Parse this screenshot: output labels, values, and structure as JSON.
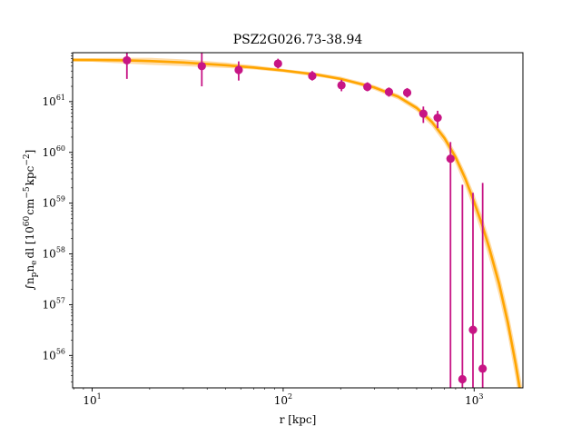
{
  "chart_data": {
    "type": "scatter",
    "title": "PSZ2G026.73-38.94",
    "xlabel": "r [kpc]",
    "ylabel": {
      "integral": "∫",
      "base": "n",
      "sub1": "p",
      "mid": "n",
      "sub2": "e",
      "tail": "dl [10",
      "sup1": "60",
      "unit": "cm",
      "sup2": "−5",
      "unit2": "kpc",
      "sup3": "−2",
      "close": "]"
    },
    "x_scale": "log",
    "y_scale": "log",
    "xlim": [
      7.9,
      1800
    ],
    "ylim": [
      2.3e+55,
      9.2e+61
    ],
    "x_ticks": [
      {
        "value": 10,
        "base": "10",
        "exp": "1"
      },
      {
        "value": 100,
        "base": "10",
        "exp": "2"
      },
      {
        "value": 1000,
        "base": "10",
        "exp": "3"
      }
    ],
    "y_ticks": [
      {
        "value": 1e+56,
        "base": "10",
        "exp": "56"
      },
      {
        "value": 1e+57,
        "base": "10",
        "exp": "57"
      },
      {
        "value": 1e+58,
        "base": "10",
        "exp": "58"
      },
      {
        "value": 1e+59,
        "base": "10",
        "exp": "59"
      },
      {
        "value": 1e+60,
        "base": "10",
        "exp": "60"
      },
      {
        "value": 1e+61,
        "base": "10",
        "exp": "61"
      }
    ],
    "grid": false,
    "legend": "none",
    "colors": {
      "points": "#c71585",
      "model": "#ffa500",
      "band": "#ffd79a"
    },
    "data_points": [
      {
        "r": 15.2,
        "y": 6.5e+61,
        "ylo": 2.8e+61,
        "yhi": 9.2e+61
      },
      {
        "r": 37.5,
        "y": 5e+61,
        "ylo": 2e+61,
        "yhi": 9e+61
      },
      {
        "r": 58.5,
        "y": 4.2e+61,
        "ylo": 2.6e+61,
        "yhi": 6.2e+61
      },
      {
        "r": 94.0,
        "y": 5.6e+61,
        "ylo": 4.5e+61,
        "yhi": 7e+61
      },
      {
        "r": 142.0,
        "y": 3.2e+61,
        "ylo": 2.6e+61,
        "yhi": 4e+61
      },
      {
        "r": 202.0,
        "y": 2.1e+61,
        "ylo": 1.6e+61,
        "yhi": 2.7e+61
      },
      {
        "r": 276.0,
        "y": 1.95e+61,
        "ylo": 1.6e+61,
        "yhi": 2.4e+61
      },
      {
        "r": 358.0,
        "y": 1.55e+61,
        "ylo": 1.25e+61,
        "yhi": 1.9e+61
      },
      {
        "r": 446.0,
        "y": 1.5e+61,
        "ylo": 1.2e+61,
        "yhi": 1.85e+61
      },
      {
        "r": 542.0,
        "y": 5.8e+60,
        "ylo": 3.8e+60,
        "yhi": 8e+60
      },
      {
        "r": 644.0,
        "y": 4.8e+60,
        "ylo": 3e+60,
        "yhi": 6.6e+60
      },
      {
        "r": 752.0,
        "y": 7.5e+59,
        "ylo": 2.3e+55,
        "yhi": 1.6e+60
      },
      {
        "r": 868.0,
        "y": 3.4e+55,
        "ylo": 2.3e+55,
        "yhi": 2.3e+59
      },
      {
        "r": 986.0,
        "y": 3.2e+56,
        "ylo": 2.3e+55,
        "yhi": 1.6e+59
      },
      {
        "r": 1108.0,
        "y": 5.5e+55,
        "ylo": 2.3e+55,
        "yhi": 2.5e+59
      }
    ],
    "model_curve": [
      {
        "r": 7.9,
        "y": 6.6e+61,
        "lo": 6.2e+61,
        "hi": 7.2e+61
      },
      {
        "r": 10,
        "y": 6.6e+61,
        "lo": 6.1e+61,
        "hi": 7.2e+61
      },
      {
        "r": 15,
        "y": 6.5e+61,
        "lo": 5.6e+61,
        "hi": 7.3e+61
      },
      {
        "r": 20,
        "y": 6.3e+61,
        "lo": 5.3e+61,
        "hi": 7.3e+61
      },
      {
        "r": 30,
        "y": 5.9e+61,
        "lo": 5e+61,
        "hi": 6.8e+61
      },
      {
        "r": 50,
        "y": 5.2e+61,
        "lo": 4.6e+61,
        "hi": 5.9e+61
      },
      {
        "r": 70,
        "y": 4.7e+61,
        "lo": 4.3e+61,
        "hi": 5.2e+61
      },
      {
        "r": 100,
        "y": 4.1e+61,
        "lo": 3.8e+61,
        "hi": 4.4e+61
      },
      {
        "r": 150,
        "y": 3.4e+61,
        "lo": 3.1e+61,
        "hi": 3.7e+61
      },
      {
        "r": 200,
        "y": 2.8e+61,
        "lo": 2.6e+61,
        "hi": 3.1e+61
      },
      {
        "r": 300,
        "y": 1.9e+61,
        "lo": 1.7e+61,
        "hi": 2.1e+61
      },
      {
        "r": 400,
        "y": 1.25e+61,
        "lo": 1.1e+61,
        "hi": 1.4e+61
      },
      {
        "r": 500,
        "y": 7.5e+60,
        "lo": 6.5e+60,
        "hi": 8.5e+60
      },
      {
        "r": 600,
        "y": 4e+60,
        "lo": 3.3e+60,
        "hi": 4.7e+60
      },
      {
        "r": 700,
        "y": 1.9e+60,
        "lo": 1.5e+60,
        "hi": 2.3e+60
      },
      {
        "r": 800,
        "y": 8e+59,
        "lo": 6e+59,
        "hi": 1e+60
      },
      {
        "r": 900,
        "y": 3e+59,
        "lo": 2.1e+59,
        "hi": 4e+59
      },
      {
        "r": 1000,
        "y": 1.05e+59,
        "lo": 7e+58,
        "hi": 1.5e+59
      },
      {
        "r": 1100,
        "y": 3.8e+58,
        "lo": 2.4e+58,
        "hi": 5.6e+58
      },
      {
        "r": 1200,
        "y": 1.3e+58,
        "lo": 8e+57,
        "hi": 2e+58
      },
      {
        "r": 1350,
        "y": 2.6e+57,
        "lo": 1.5e+57,
        "hi": 4.2e+57
      },
      {
        "r": 1500,
        "y": 4.5e+56,
        "lo": 2.5e+56,
        "hi": 8e+56
      },
      {
        "r": 1650,
        "y": 6.8e+55,
        "lo": 3.5e+55,
        "hi": 1.3e+56
      },
      {
        "r": 1800,
        "y": 9.5e+54,
        "lo": 4.5e+54,
        "hi": 2e+55
      }
    ]
  }
}
